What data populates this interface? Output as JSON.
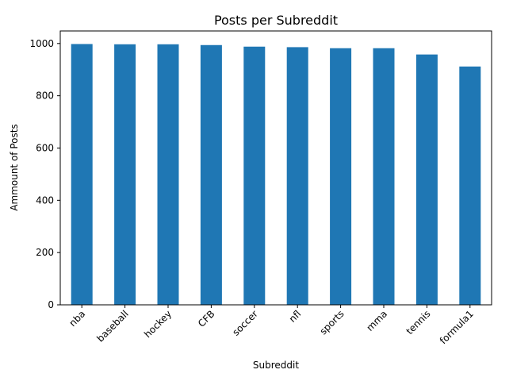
{
  "chart_data": {
    "type": "bar",
    "title": "Posts per Subreddit",
    "xlabel": "Subreddit",
    "ylabel": "Ammount of Posts",
    "categories": [
      "nba",
      "baseball",
      "hockey",
      "CFB",
      "soccer",
      "nfl",
      "sports",
      "mma",
      "tennis",
      "formula1"
    ],
    "values": [
      998,
      997,
      997,
      994,
      988,
      986,
      982,
      982,
      958,
      912
    ],
    "ylim": [
      0,
      1048
    ],
    "yticks": [
      0,
      200,
      400,
      600,
      800,
      1000
    ],
    "bar_color": "#1f77b4",
    "grid": false,
    "legend": "none"
  }
}
